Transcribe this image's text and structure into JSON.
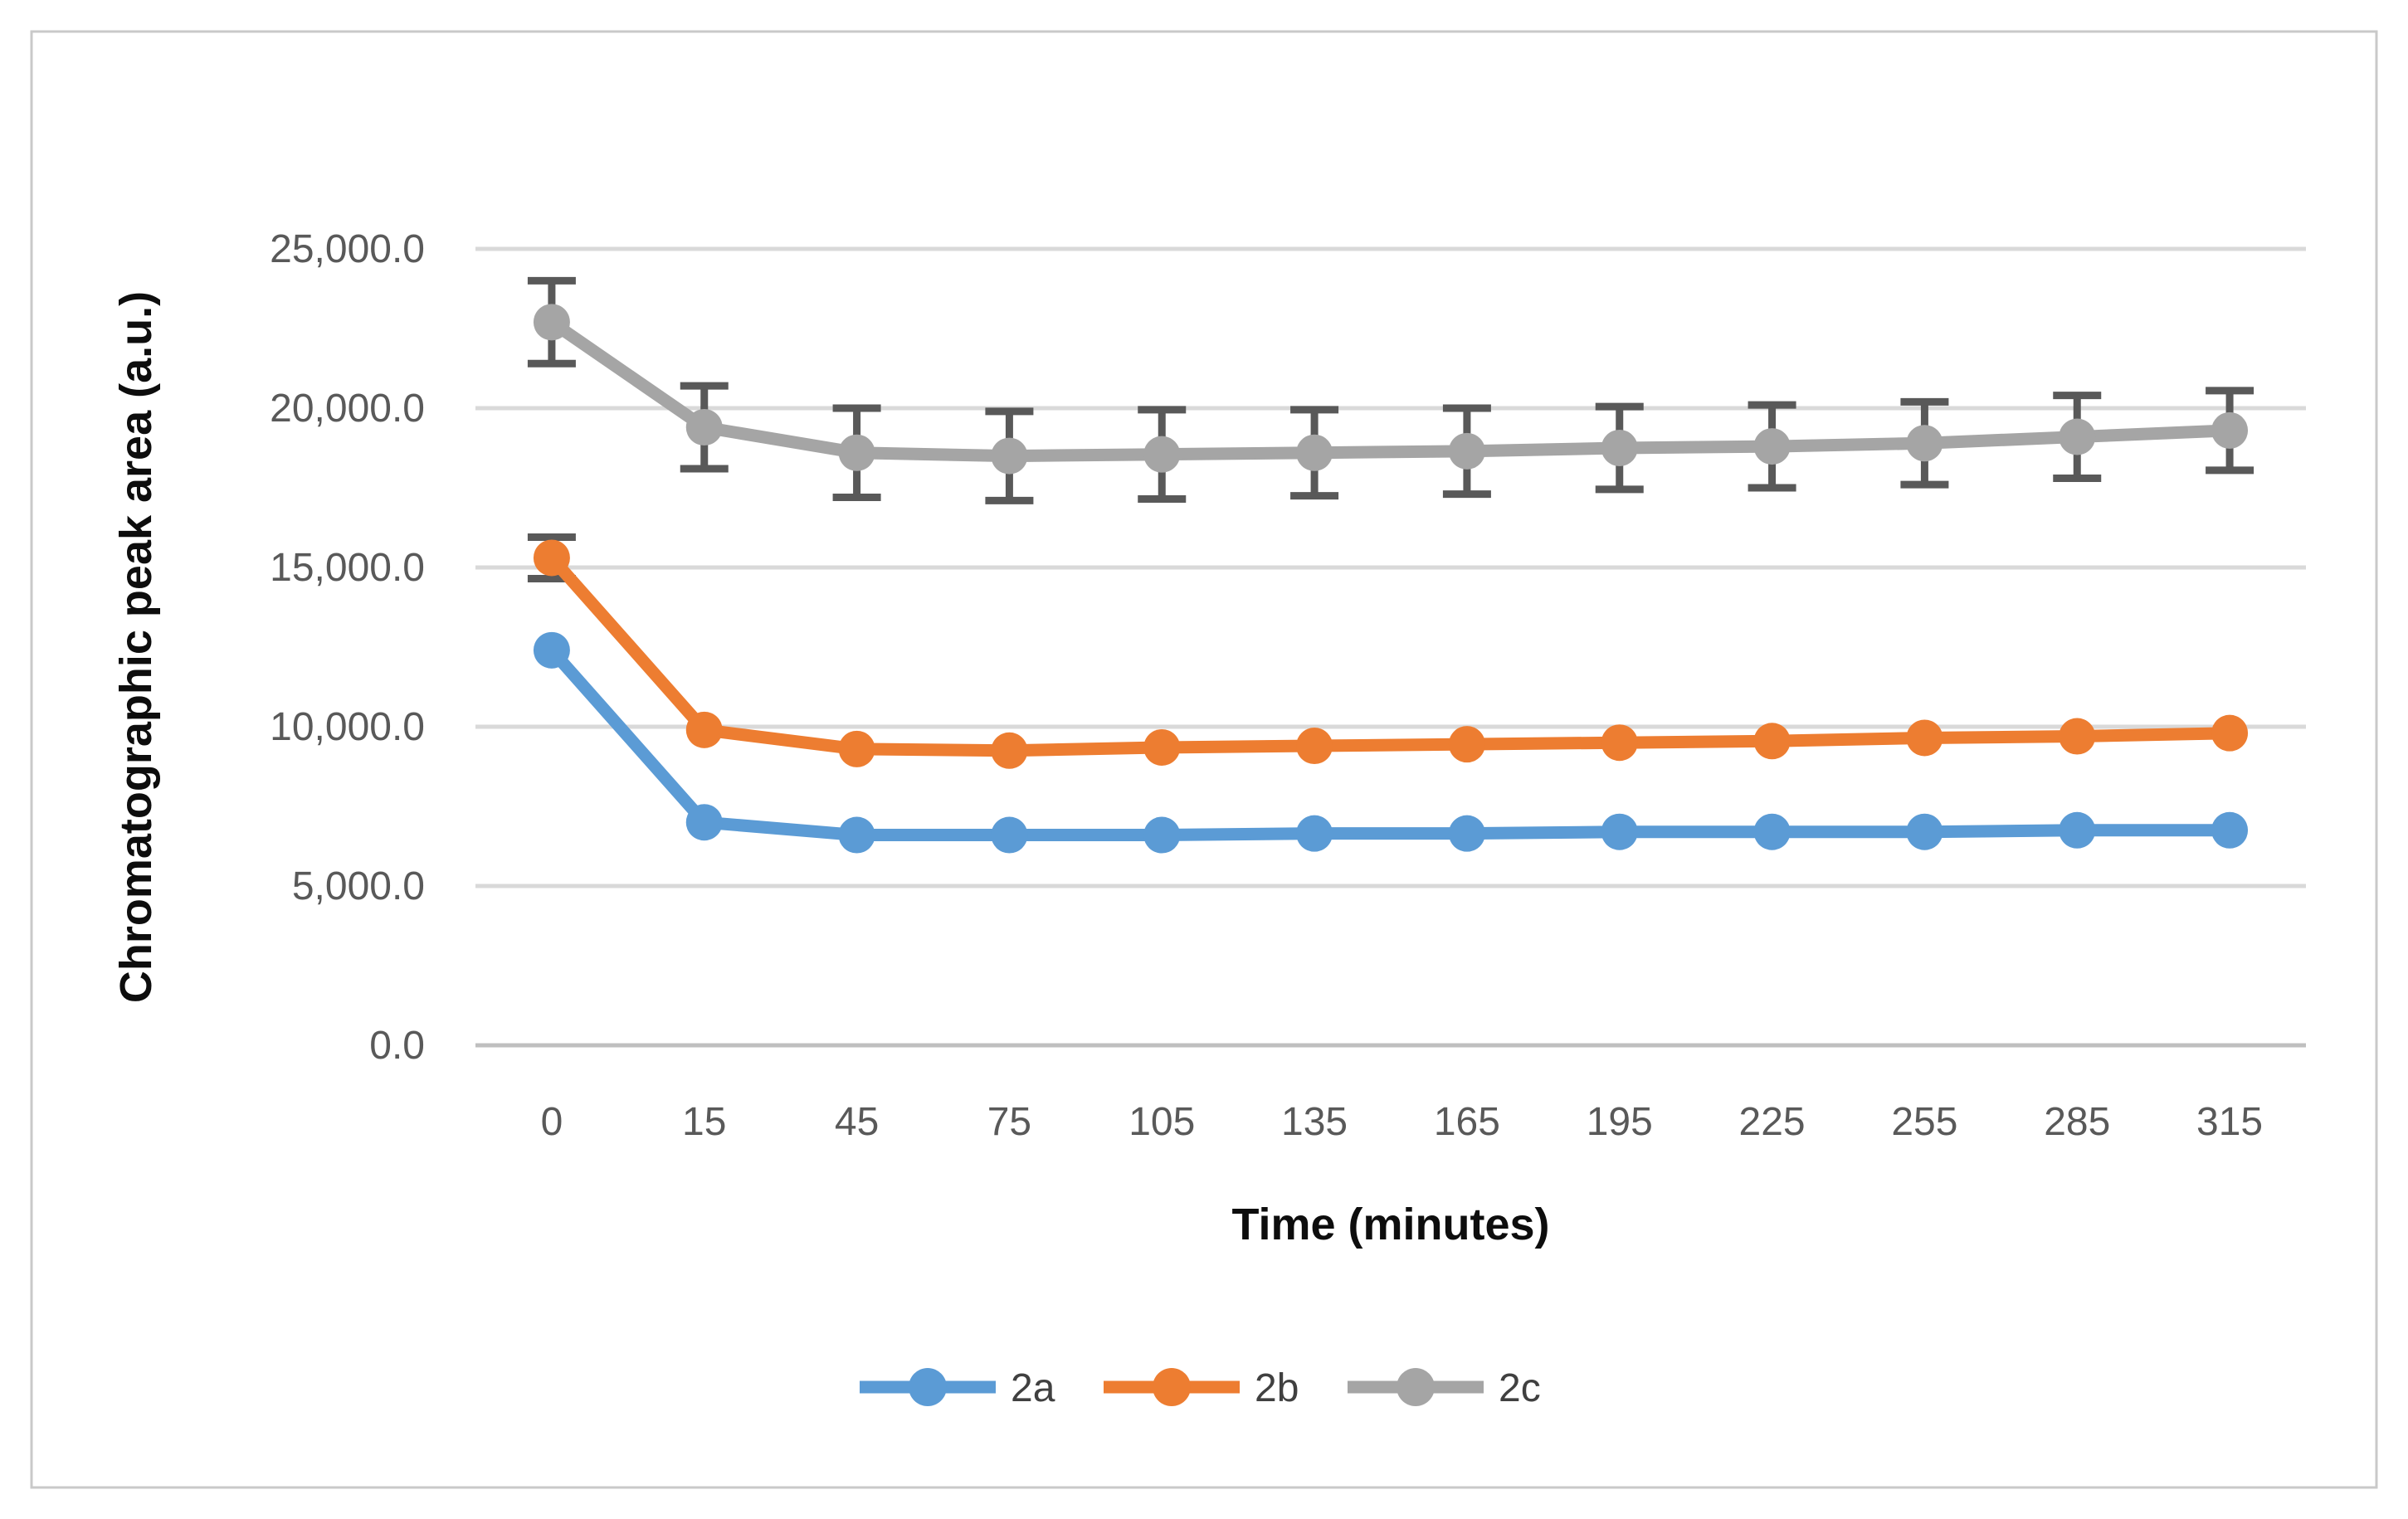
{
  "chart_data": {
    "type": "line",
    "title": "",
    "xlabel": "Time (minutes)",
    "ylabel": "Chromatographic peak area (a.u.)",
    "categories": [
      0,
      15,
      45,
      75,
      105,
      135,
      165,
      195,
      225,
      255,
      285,
      315
    ],
    "x_tick_labels": [
      "0",
      "15",
      "45",
      "75",
      "105",
      "135",
      "165",
      "195",
      "225",
      "255",
      "285",
      "315"
    ],
    "y_ticks": [
      {
        "value": 0,
        "label": "0.0"
      },
      {
        "value": 5000,
        "label": "5,000.0"
      },
      {
        "value": 10000,
        "label": "10,000.0"
      },
      {
        "value": 15000,
        "label": "15,000.0"
      },
      {
        "value": 20000,
        "label": "20,000.0"
      },
      {
        "value": 25000,
        "label": "25,000.0"
      }
    ],
    "ylim": [
      0,
      25000
    ],
    "grid": true,
    "legend_position": "bottom",
    "series": [
      {
        "name": "2a",
        "color": "#5B9BD5",
        "values": [
          12400,
          7000,
          6600,
          6600,
          6600,
          6650,
          6650,
          6700,
          6700,
          6700,
          6750,
          6750
        ],
        "errors": [
          0,
          0,
          0,
          0,
          0,
          0,
          0,
          0,
          0,
          0,
          0,
          0
        ]
      },
      {
        "name": "2b",
        "color": "#ED7D31",
        "values": [
          15300,
          9900,
          9300,
          9250,
          9350,
          9400,
          9450,
          9500,
          9550,
          9650,
          9700,
          9800
        ],
        "errors": [
          650,
          0,
          0,
          0,
          0,
          0,
          0,
          0,
          0,
          0,
          0,
          0
        ]
      },
      {
        "name": "2c",
        "color": "#A5A5A5",
        "values": [
          22700,
          19400,
          18600,
          18500,
          18550,
          18600,
          18650,
          18750,
          18800,
          18900,
          19100,
          19300
        ],
        "errors": [
          1300,
          1300,
          1400,
          1400,
          1400,
          1350,
          1350,
          1300,
          1300,
          1300,
          1300,
          1250
        ]
      }
    ],
    "legend": [
      "2a",
      "2b",
      "2c"
    ]
  },
  "styles": {
    "gridline_color": "#D9D9D9",
    "axis_line_color": "#BFBFBF",
    "tick_label_color": "#595959",
    "axis_title_color": "#0D0D0D",
    "legend_label_color": "#404040",
    "error_bar_color": "#595959",
    "border_color": "#C9C9C9",
    "background_color": "#FFFFFF"
  }
}
